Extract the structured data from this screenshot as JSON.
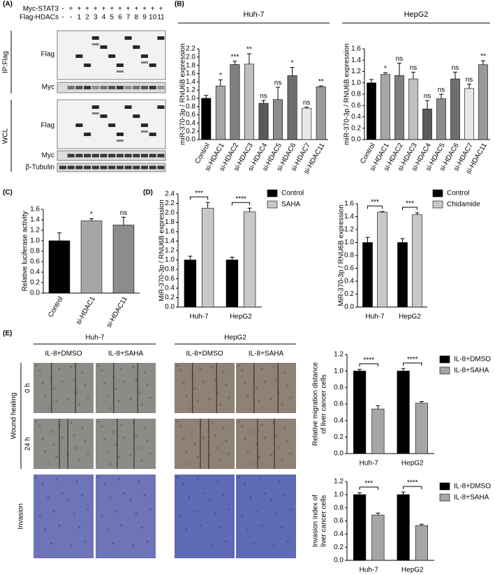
{
  "panel_labels": [
    "(A)",
    "(B)",
    "(C)",
    "(D)",
    "(E)"
  ],
  "blot": {
    "header_rows": [
      {
        "label": "Myc-STAT3",
        "lanes": [
          "-",
          "+",
          "+",
          "+",
          "+",
          "+",
          "+",
          "+",
          "+",
          "+",
          "+",
          "+",
          "+"
        ]
      },
      {
        "label": "Flag-HDACs",
        "lanes": [
          "-",
          "-",
          "1",
          "2",
          "3",
          "4",
          "5",
          "6",
          "7",
          "8",
          "9",
          "10",
          "11"
        ]
      }
    ],
    "groups": [
      "IP:Flag",
      "WCL"
    ],
    "rows": [
      "Flag",
      "Myc",
      "Flag",
      "Myc",
      "β-Tubulin"
    ]
  },
  "images": {
    "cell_lines": [
      "Huh-7",
      "HepG2"
    ],
    "treatments": [
      "IL-8+DMSO",
      "IL-8+SAHA",
      "IL-8+DMSO",
      "IL-8+SAHA"
    ],
    "time_rows": [
      "0 h",
      "24 h"
    ],
    "groups": [
      "Wound healing",
      "Invasion"
    ]
  },
  "chart_data": [
    {
      "type": "bar",
      "title": "Huh-7",
      "ylabel": "miR-370-3p / RNU6B expression",
      "categories": [
        "Control",
        "si-HDAC1",
        "si-HDAC2",
        "si-HDAC3",
        "si-HDAC4",
        "si-HDAC5",
        "si-HDAC6",
        "si-HDAC7",
        "si-HDAC11"
      ],
      "values": [
        1.0,
        1.3,
        1.82,
        1.83,
        0.88,
        0.97,
        1.55,
        0.76,
        1.28
      ],
      "errors": [
        0.07,
        0.15,
        0.08,
        0.25,
        0.07,
        0.3,
        0.2,
        0.03,
        0.02
      ],
      "colors": [
        "#000000",
        "#a6a6a6",
        "#7f7f7f",
        "#bfbfbf",
        "#595959",
        "#8c8c8c",
        "#6e6e6e",
        "#e8e8e8",
        "#9a9a9a"
      ],
      "annotations": [
        null,
        "*",
        "***",
        "**",
        "ns",
        "ns",
        "*",
        "ns",
        "**"
      ],
      "ylim": [
        0,
        2.2
      ],
      "yticks": [
        {
          "value": 0,
          "label": "0.0"
        },
        {
          "value": 0.2,
          "label": "0.2"
        },
        {
          "value": 0.4,
          "label": "0.4"
        },
        {
          "value": 0.6,
          "label": "0.6"
        },
        {
          "value": 0.8,
          "label": "0.8"
        },
        {
          "value": 1,
          "label": "1.0"
        },
        {
          "value": 1.2,
          "label": "1.2"
        },
        {
          "value": 1.4,
          "label": "1.4"
        },
        {
          "value": 1.6,
          "label": "1.6"
        },
        {
          "value": 1.8,
          "label": "1.8"
        },
        {
          "value": 2,
          "label": "2.0"
        },
        {
          "value": 2.2,
          "label": "2.2"
        }
      ]
    },
    {
      "type": "bar",
      "title": "HepG2",
      "ylabel": "miR-370-3p / RNU6B expression",
      "categories": [
        "Control",
        "si-HDAC1",
        "si-HDAC2",
        "si-HDAC3",
        "si-HDAC4",
        "si-HDAC5",
        "si-HDAC6",
        "si-HDAC7",
        "si-HDAC11"
      ],
      "values": [
        1.0,
        1.15,
        1.13,
        1.07,
        0.54,
        0.72,
        1.07,
        0.9,
        1.32
      ],
      "errors": [
        0.06,
        0.03,
        0.22,
        0.12,
        0.15,
        0.08,
        0.12,
        0.08,
        0.07
      ],
      "colors": [
        "#000000",
        "#a6a6a6",
        "#7f7f7f",
        "#bfbfbf",
        "#595959",
        "#8c8c8c",
        "#6e6e6e",
        "#e8e8e8",
        "#9a9a9a"
      ],
      "annotations": [
        null,
        "*",
        "ns",
        "ns",
        "ns",
        "ns",
        "ns",
        "ns",
        "**"
      ],
      "ylim": [
        0,
        1.6
      ],
      "yticks": [
        {
          "value": 0,
          "label": "0.0"
        },
        {
          "value": 0.2,
          "label": "0.2"
        },
        {
          "value": 0.4,
          "label": "0.4"
        },
        {
          "value": 0.6,
          "label": "0.6"
        },
        {
          "value": 0.8,
          "label": "0.8"
        },
        {
          "value": 1,
          "label": "1.0"
        },
        {
          "value": 1.2,
          "label": "1.2"
        },
        {
          "value": 1.4,
          "label": "1.4"
        },
        {
          "value": 1.6,
          "label": "1.6"
        }
      ]
    },
    {
      "type": "bar",
      "ylabel": "Relative luciferase activity",
      "categories": [
        "Control",
        "si-HDAC1",
        "si-HDAC11"
      ],
      "values": [
        1.0,
        1.38,
        1.3
      ],
      "errors": [
        0.15,
        0.04,
        0.15
      ],
      "colors": [
        "#000000",
        "#a6a6a6",
        "#8c8c8c"
      ],
      "annotations": [
        null,
        "*",
        "ns"
      ],
      "ylim": [
        0,
        1.6
      ],
      "yticks": [
        {
          "value": 0,
          "label": "0.0"
        },
        {
          "value": 0.2,
          "label": "0.2"
        },
        {
          "value": 0.4,
          "label": "0.4"
        },
        {
          "value": 0.6,
          "label": "0.6"
        },
        {
          "value": 0.8,
          "label": "0.8"
        },
        {
          "value": 1,
          "label": "1.0"
        },
        {
          "value": 1.2,
          "label": "1.2"
        },
        {
          "value": 1.4,
          "label": "1.4"
        },
        {
          "value": 1.6,
          "label": "1.6"
        }
      ]
    },
    {
      "type": "grouped_bar",
      "ylabel": "MiR-370-3p / RNU6B expression",
      "categories": [
        "Huh-7",
        "HepG2"
      ],
      "series": [
        {
          "name": "Control",
          "color": "#000000",
          "values": [
            1.0,
            1.0
          ],
          "errors": [
            0.08,
            0.06
          ]
        },
        {
          "name": "SAHA",
          "color": "#c8c8c8",
          "values": [
            2.1,
            2.02
          ],
          "errors": [
            0.12,
            0.08
          ]
        }
      ],
      "significance": [
        "***",
        "****"
      ],
      "ylim": [
        0,
        2.4
      ],
      "yticks": [
        {
          "value": 0,
          "label": "0.0"
        },
        {
          "value": 0.2,
          "label": "0.2"
        },
        {
          "value": 0.4,
          "label": "0.4"
        },
        {
          "value": 0.6,
          "label": "0.6"
        },
        {
          "value": 0.8,
          "label": "0.8"
        },
        {
          "value": 1,
          "label": "1.0"
        },
        {
          "value": 1.2,
          "label": "1.2"
        },
        {
          "value": 1.4,
          "label": "1.4"
        },
        {
          "value": 1.6,
          "label": "1.6"
        },
        {
          "value": 1.8,
          "label": "1.8"
        },
        {
          "value": 2,
          "label": "2.0"
        },
        {
          "value": 2.2,
          "label": "2.2"
        },
        {
          "value": 2.4,
          "label": "2.4"
        }
      ]
    },
    {
      "type": "grouped_bar",
      "ylabel": "MiR-370-3p / RNU6B expression",
      "categories": [
        "Huh-7",
        "HepG2"
      ],
      "series": [
        {
          "name": "Control",
          "color": "#000000",
          "values": [
            1.0,
            1.0
          ],
          "errors": [
            0.08,
            0.06
          ]
        },
        {
          "name": "Chidamide",
          "color": "#c8c8c8",
          "values": [
            1.47,
            1.43
          ],
          "errors": [
            0.01,
            0.03
          ]
        }
      ],
      "significance": [
        "***",
        "***"
      ],
      "ylim": [
        0,
        1.6
      ],
      "yticks": [
        {
          "value": 0,
          "label": "0.0"
        },
        {
          "value": 0.2,
          "label": "0.2"
        },
        {
          "value": 0.4,
          "label": "0.4"
        },
        {
          "value": 0.6,
          "label": "0.6"
        },
        {
          "value": 0.8,
          "label": "0.8"
        },
        {
          "value": 1,
          "label": "1.0"
        },
        {
          "value": 1.2,
          "label": "1.2"
        },
        {
          "value": 1.4,
          "label": "1.4"
        },
        {
          "value": 1.6,
          "label": "1.6"
        }
      ]
    },
    {
      "type": "grouped_bar",
      "ylabel": [
        "Relative migration distance",
        "of liver cancer cells"
      ],
      "categories": [
        "Huh-7",
        "HepG2"
      ],
      "series": [
        {
          "name": "IL-8+DMSO",
          "color": "#000000",
          "values": [
            1.0,
            1.0
          ],
          "errors": [
            0.02,
            0.03
          ]
        },
        {
          "name": "IL-8+SAHA",
          "color": "#a6a6a6",
          "values": [
            0.54,
            0.61
          ],
          "errors": [
            0.04,
            0.02
          ]
        }
      ],
      "significance": [
        "****",
        "****"
      ],
      "ylim": [
        0,
        1.2
      ],
      "yticks": [
        {
          "value": 0,
          "label": "0.0"
        },
        {
          "value": 0.2,
          "label": "0.2"
        },
        {
          "value": 0.4,
          "label": "0.4"
        },
        {
          "value": 0.6,
          "label": "0.6"
        },
        {
          "value": 0.8,
          "label": "0.8"
        },
        {
          "value": 1,
          "label": "1.0"
        },
        {
          "value": 1.2,
          "label": "1.2"
        }
      ]
    },
    {
      "type": "grouped_bar",
      "ylabel": [
        "Invasion index of",
        "liver cancer cells"
      ],
      "categories": [
        "Huh-7",
        "HepG2"
      ],
      "series": [
        {
          "name": "IL-8+DMSO",
          "color": "#000000",
          "values": [
            1.0,
            1.0
          ],
          "errors": [
            0.03,
            0.04
          ]
        },
        {
          "name": "IL-8+SAHA",
          "color": "#a6a6a6",
          "values": [
            0.69,
            0.53
          ],
          "errors": [
            0.03,
            0.02
          ]
        }
      ],
      "significance": [
        "***",
        "****"
      ],
      "ylim": [
        0,
        1.2
      ],
      "yticks": [
        {
          "value": 0,
          "label": "0.0"
        },
        {
          "value": 0.2,
          "label": "0.2"
        },
        {
          "value": 0.4,
          "label": "0.4"
        },
        {
          "value": 0.6,
          "label": "0.6"
        },
        {
          "value": 0.8,
          "label": "0.8"
        },
        {
          "value": 1,
          "label": "1.0"
        },
        {
          "value": 1.2,
          "label": "1.2"
        }
      ]
    }
  ]
}
